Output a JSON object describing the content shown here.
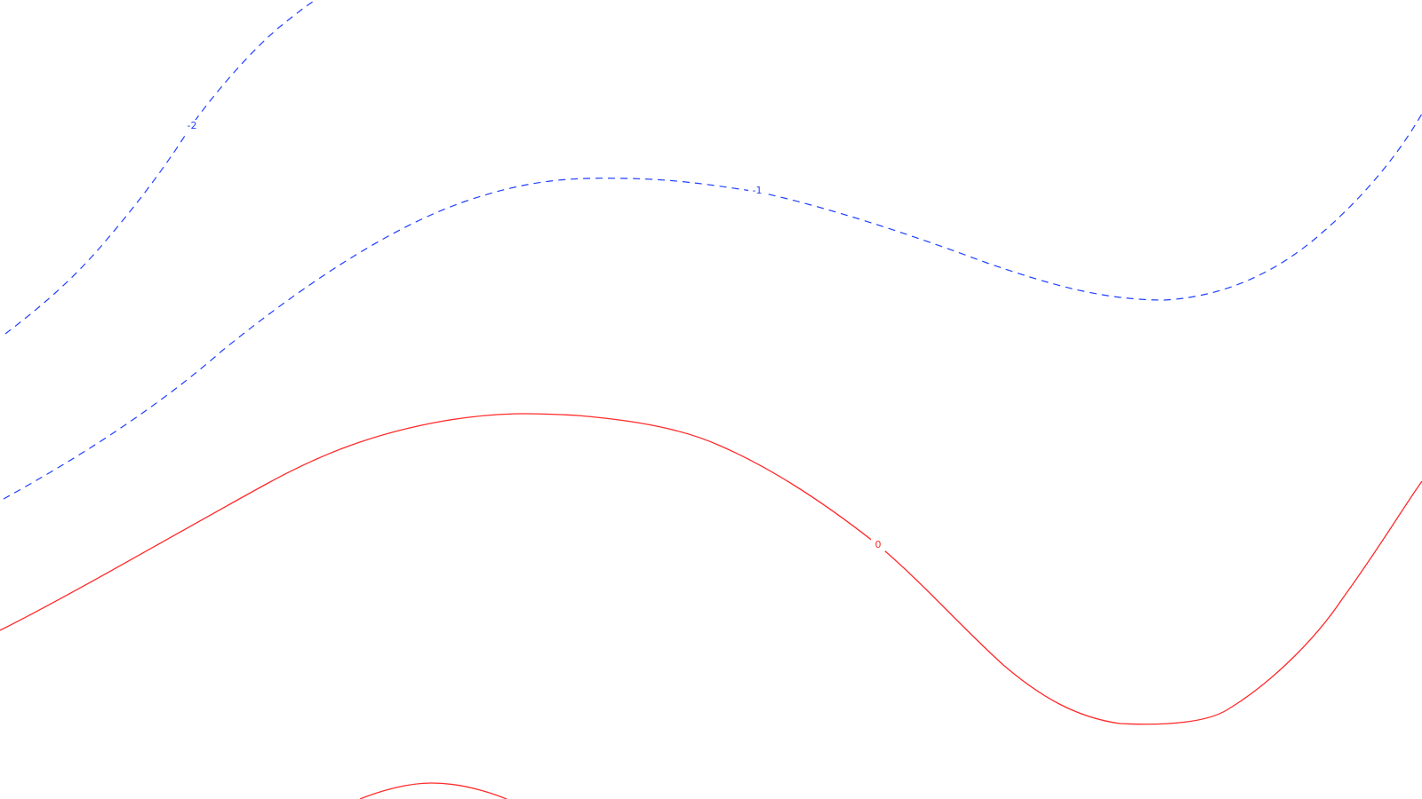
{
  "contour_map": {
    "contours": [
      {
        "level": "-2",
        "label": "-2",
        "style": "dashed",
        "color": "#1f3fff"
      },
      {
        "level": "-1",
        "label": "-1",
        "style": "dashed",
        "color": "#1f3fff"
      },
      {
        "level": "0",
        "label": "0",
        "style": "solid",
        "color": "#ff2a2a"
      },
      {
        "level": "0b",
        "label": "",
        "style": "solid",
        "color": "#ff2a2a"
      }
    ]
  }
}
